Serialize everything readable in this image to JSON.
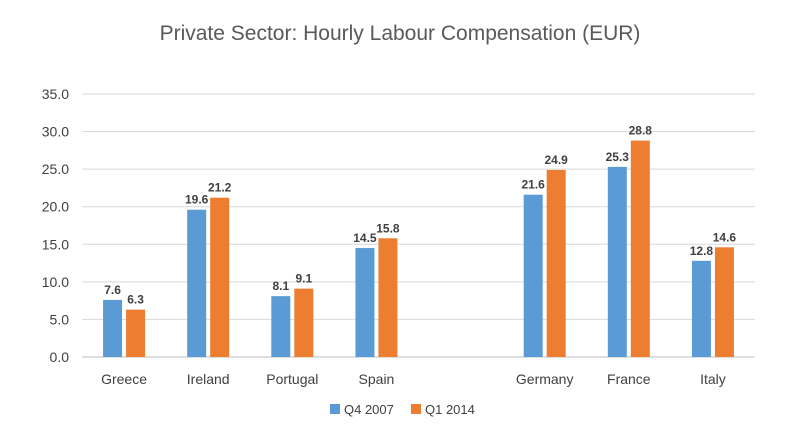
{
  "chart_data": {
    "type": "bar",
    "title": "Private Sector: Hourly Labour Compensation (EUR)",
    "xlabel": "",
    "ylabel": "",
    "ylim": [
      0,
      35
    ],
    "yticks": [
      "0.0",
      "5.0",
      "10.0",
      "15.0",
      "20.0",
      "25.0",
      "30.0",
      "35.0"
    ],
    "grid": true,
    "legend_position": "bottom",
    "categories": [
      "Greece",
      "Ireland",
      "Portugal",
      "Spain",
      "",
      "Germany",
      "France",
      "Italy"
    ],
    "series": [
      {
        "name": "Q4 2007",
        "color": "#5B9BD5",
        "values": [
          7.6,
          19.6,
          8.1,
          14.5,
          null,
          21.6,
          25.3,
          12.8
        ]
      },
      {
        "name": "Q1 2014",
        "color": "#ED7D31",
        "values": [
          6.3,
          21.2,
          9.1,
          15.8,
          null,
          24.9,
          28.8,
          14.6
        ]
      }
    ]
  }
}
